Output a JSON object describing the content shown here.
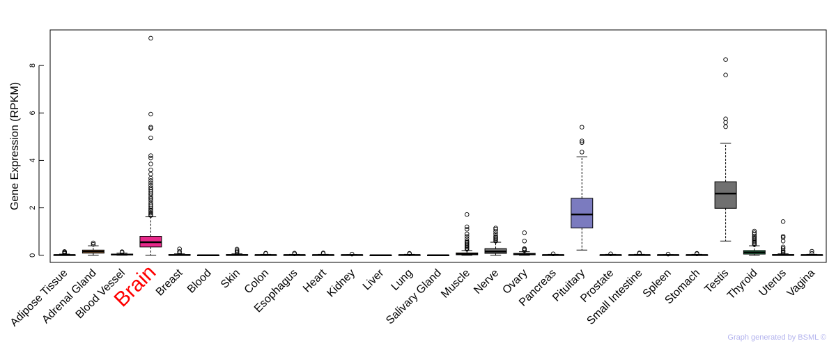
{
  "chart_data": {
    "type": "box",
    "ylabel": "Gene Expression (RPKM)",
    "ylim": [
      -0.3,
      9.5
    ],
    "yticks": [
      0,
      2,
      4,
      6,
      8
    ],
    "highlight": "Brain",
    "credit": "Graph generated by BSML ©",
    "categories": [
      {
        "name": "Adipose Tissue",
        "color": "#e8e8e8",
        "q1": 0.0,
        "median": 0.01,
        "q3": 0.02,
        "whisker_low": 0.0,
        "whisker_high": 0.05,
        "outliers": [
          0.08,
          0.11,
          0.14,
          0.16
        ]
      },
      {
        "name": "Adrenal Gland",
        "color": "#f4a460",
        "q1": 0.09,
        "median": 0.16,
        "q3": 0.22,
        "whisker_low": 0.0,
        "whisker_high": 0.4,
        "outliers": [
          0.52,
          0.46
        ]
      },
      {
        "name": "Blood Vessel",
        "color": "#ff5a5a",
        "q1": 0.01,
        "median": 0.03,
        "q3": 0.05,
        "whisker_low": 0.0,
        "whisker_high": 0.09,
        "outliers": [
          0.12,
          0.15
        ]
      },
      {
        "name": "Brain",
        "color": "#e7298a",
        "q1": 0.35,
        "median": 0.55,
        "q3": 0.8,
        "whisker_low": 0.0,
        "whisker_high": 1.62,
        "outliers": [
          1.68,
          1.72,
          1.78,
          1.85,
          1.9,
          1.97,
          2.05,
          2.12,
          2.2,
          2.3,
          2.38,
          2.45,
          2.55,
          2.62,
          2.7,
          2.78,
          2.85,
          2.95,
          3.05,
          3.15,
          3.25,
          3.42,
          3.6,
          3.85,
          4.1,
          4.2,
          4.95,
          5.35,
          5.4,
          5.95,
          9.15
        ]
      },
      {
        "name": "Breast",
        "color": "#e8e8e8",
        "q1": 0.0,
        "median": 0.01,
        "q3": 0.03,
        "whisker_low": 0.0,
        "whisker_high": 0.06,
        "outliers": [
          0.1,
          0.16,
          0.27
        ]
      },
      {
        "name": "Blood",
        "color": "#e8e8e8",
        "q1": 0.0,
        "median": 0.0,
        "q3": 0.01,
        "whisker_low": 0.0,
        "whisker_high": 0.02,
        "outliers": []
      },
      {
        "name": "Skin",
        "color": "#e8e8e8",
        "q1": 0.0,
        "median": 0.01,
        "q3": 0.03,
        "whisker_low": 0.0,
        "whisker_high": 0.06,
        "outliers": [
          0.1,
          0.15,
          0.2,
          0.26
        ]
      },
      {
        "name": "Colon",
        "color": "#e8e8e8",
        "q1": 0.0,
        "median": 0.01,
        "q3": 0.02,
        "whisker_low": 0.0,
        "whisker_high": 0.04,
        "outliers": [
          0.07,
          0.09
        ]
      },
      {
        "name": "Esophagus",
        "color": "#e8e8e8",
        "q1": 0.0,
        "median": 0.01,
        "q3": 0.02,
        "whisker_low": 0.0,
        "whisker_high": 0.04,
        "outliers": [
          0.06,
          0.09
        ]
      },
      {
        "name": "Heart",
        "color": "#e8e8e8",
        "q1": 0.0,
        "median": 0.01,
        "q3": 0.02,
        "whisker_low": 0.0,
        "whisker_high": 0.04,
        "outliers": [
          0.07,
          0.1
        ]
      },
      {
        "name": "Kidney",
        "color": "#e8e8e8",
        "q1": 0.0,
        "median": 0.01,
        "q3": 0.02,
        "whisker_low": 0.0,
        "whisker_high": 0.03,
        "outliers": [
          0.05
        ]
      },
      {
        "name": "Liver",
        "color": "#e8e8e8",
        "q1": 0.0,
        "median": 0.0,
        "q3": 0.01,
        "whisker_low": 0.0,
        "whisker_high": 0.02,
        "outliers": []
      },
      {
        "name": "Lung",
        "color": "#e8e8e8",
        "q1": 0.0,
        "median": 0.01,
        "q3": 0.02,
        "whisker_low": 0.0,
        "whisker_high": 0.04,
        "outliers": [
          0.06,
          0.08
        ]
      },
      {
        "name": "Salivary Gland",
        "color": "#e8e8e8",
        "q1": 0.0,
        "median": 0.0,
        "q3": 0.01,
        "whisker_low": 0.0,
        "whisker_high": 0.02,
        "outliers": []
      },
      {
        "name": "Muscle",
        "color": "#c8a060",
        "q1": 0.02,
        "median": 0.05,
        "q3": 0.1,
        "whisker_low": 0.0,
        "whisker_high": 0.2,
        "outliers": [
          0.25,
          0.3,
          0.35,
          0.4,
          0.45,
          0.5,
          0.55,
          0.6,
          0.7,
          0.8,
          0.9,
          1.1,
          1.2,
          1.72
        ]
      },
      {
        "name": "Nerve",
        "color": "#707070",
        "q1": 0.08,
        "median": 0.16,
        "q3": 0.28,
        "whisker_low": 0.0,
        "whisker_high": 0.55,
        "outliers": [
          0.6,
          0.65,
          0.7,
          0.75,
          0.8,
          0.9,
          1.0,
          1.1,
          1.15
        ]
      },
      {
        "name": "Ovary",
        "color": "#e8e8e8",
        "q1": 0.02,
        "median": 0.05,
        "q3": 0.08,
        "whisker_low": 0.0,
        "whisker_high": 0.15,
        "outliers": [
          0.2,
          0.25,
          0.28,
          0.6,
          0.95
        ]
      },
      {
        "name": "Pancreas",
        "color": "#e8e8e8",
        "q1": 0.0,
        "median": 0.01,
        "q3": 0.02,
        "whisker_low": 0.0,
        "whisker_high": 0.04,
        "outliers": [
          0.06
        ]
      },
      {
        "name": "Pituitary",
        "color": "#7b7bbf",
        "q1": 1.15,
        "median": 1.72,
        "q3": 2.4,
        "whisker_low": 0.22,
        "whisker_high": 4.15,
        "outliers": [
          4.35,
          4.75,
          4.82,
          5.4
        ]
      },
      {
        "name": "Prostate",
        "color": "#e8e8e8",
        "q1": 0.0,
        "median": 0.01,
        "q3": 0.02,
        "whisker_low": 0.0,
        "whisker_high": 0.04,
        "outliers": [
          0.06
        ]
      },
      {
        "name": "Small Intestine",
        "color": "#e8e8e8",
        "q1": 0.0,
        "median": 0.01,
        "q3": 0.02,
        "whisker_low": 0.0,
        "whisker_high": 0.04,
        "outliers": [
          0.07,
          0.1
        ]
      },
      {
        "name": "Spleen",
        "color": "#e8e8e8",
        "q1": 0.0,
        "median": 0.01,
        "q3": 0.02,
        "whisker_low": 0.0,
        "whisker_high": 0.03,
        "outliers": [
          0.05
        ]
      },
      {
        "name": "Stomach",
        "color": "#e8e8e8",
        "q1": 0.0,
        "median": 0.01,
        "q3": 0.02,
        "whisker_low": 0.0,
        "whisker_high": 0.04,
        "outliers": [
          0.06,
          0.08
        ]
      },
      {
        "name": "Testis",
        "color": "#707070",
        "q1": 1.98,
        "median": 2.6,
        "q3": 3.1,
        "whisker_low": 0.6,
        "whisker_high": 4.72,
        "outliers": [
          5.42,
          5.6,
          5.75,
          7.6,
          8.25
        ]
      },
      {
        "name": "Thyroid",
        "color": "#2e8b57",
        "q1": 0.05,
        "median": 0.12,
        "q3": 0.2,
        "whisker_low": 0.0,
        "whisker_high": 0.4,
        "outliers": [
          0.45,
          0.5,
          0.55,
          0.6,
          0.65,
          0.7,
          0.75,
          0.8,
          0.88,
          0.95,
          1.02
        ]
      },
      {
        "name": "Uterus",
        "color": "#e8e8e8",
        "q1": 0.0,
        "median": 0.01,
        "q3": 0.03,
        "whisker_low": 0.0,
        "whisker_high": 0.06,
        "outliers": [
          0.1,
          0.15,
          0.2,
          0.28,
          0.35,
          0.6,
          0.75,
          0.8,
          1.42
        ]
      },
      {
        "name": "Vagina",
        "color": "#e8e8e8",
        "q1": 0.0,
        "median": 0.01,
        "q3": 0.02,
        "whisker_low": 0.0,
        "whisker_high": 0.04,
        "outliers": [
          0.08,
          0.17
        ]
      }
    ]
  }
}
